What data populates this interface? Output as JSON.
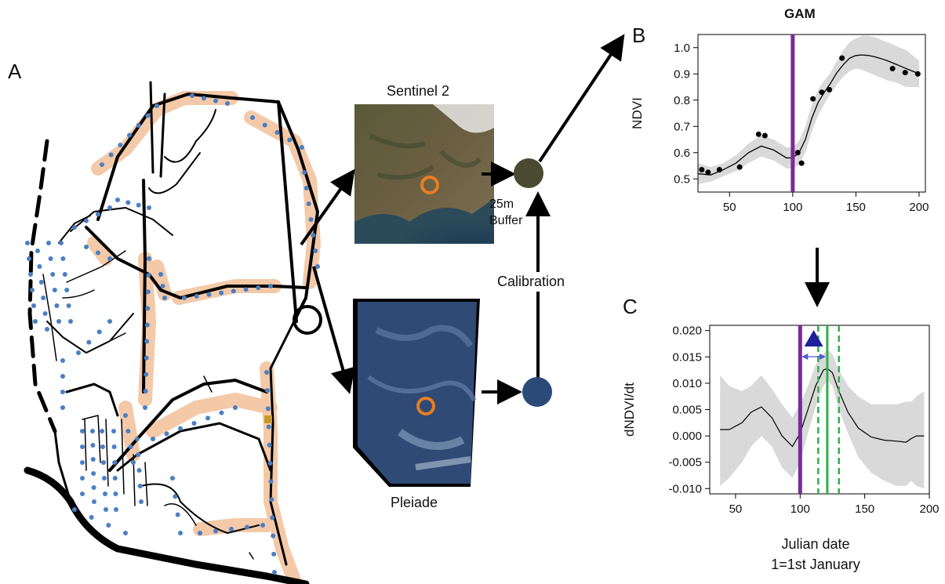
{
  "panels": {
    "a": "A",
    "b": "B",
    "c": "C"
  },
  "images": {
    "sentinel_title": "Sentinel 2",
    "pleiade_title": "Pleiade",
    "buffer_line1": "25m",
    "buffer_line2": "Buffer",
    "calibration": "Calibration"
  },
  "colors": {
    "road": "#000000",
    "survey_point": "#4a7fc4",
    "transect_buffer": "#f4c9a8",
    "vertical_marker": "#7a2a9a",
    "peak_marker": "#2eb04b",
    "ci_band": "#d9d9d9",
    "circle_marker": "#e67e22",
    "triangle": "#1f1f9e"
  },
  "chart_data": [
    {
      "type": "scatter",
      "title": "GAM",
      "xlabel": "",
      "ylabel": "NDVI",
      "xlim": [
        25,
        205
      ],
      "ylim": [
        0.45,
        1.05
      ],
      "xticks": [
        "50",
        "100",
        "150",
        "200"
      ],
      "yticks": [
        "0.5",
        "0.6",
        "0.7",
        "0.8",
        "0.9",
        "1.0"
      ],
      "vline": 100,
      "series": [
        {
          "points": [
            [
              28,
              0.535
            ],
            [
              33,
              0.525
            ],
            [
              42,
              0.535
            ],
            [
              58,
              0.545
            ],
            [
              73,
              0.67
            ],
            [
              78,
              0.665
            ],
            [
              104,
              0.6
            ],
            [
              107,
              0.56
            ],
            [
              116,
              0.805
            ],
            [
              123,
              0.83
            ],
            [
              129,
              0.84
            ],
            [
              139,
              0.96
            ],
            [
              179,
              0.92
            ],
            [
              189,
              0.905
            ],
            [
              199,
              0.9
            ]
          ],
          "fit_x": [
            25,
            35,
            45,
            55,
            65,
            75,
            85,
            95,
            100,
            105,
            110,
            115,
            120,
            125,
            130,
            135,
            140,
            145,
            150,
            155,
            160,
            165,
            170,
            175,
            180,
            185,
            190,
            195,
            200
          ],
          "fit_y": [
            0.52,
            0.515,
            0.535,
            0.56,
            0.6,
            0.625,
            0.61,
            0.58,
            0.58,
            0.6,
            0.65,
            0.73,
            0.79,
            0.83,
            0.865,
            0.905,
            0.935,
            0.96,
            0.97,
            0.972,
            0.97,
            0.965,
            0.958,
            0.95,
            0.94,
            0.93,
            0.92,
            0.91,
            0.9
          ],
          "fit_lower": [
            0.48,
            0.49,
            0.51,
            0.53,
            0.56,
            0.585,
            0.57,
            0.54,
            0.54,
            0.555,
            0.6,
            0.68,
            0.74,
            0.785,
            0.825,
            0.86,
            0.89,
            0.91,
            0.92,
            0.915,
            0.905,
            0.895,
            0.885,
            0.875,
            0.87,
            0.86,
            0.85,
            0.85,
            0.85
          ],
          "fit_upper": [
            0.56,
            0.545,
            0.56,
            0.59,
            0.635,
            0.665,
            0.65,
            0.62,
            0.62,
            0.645,
            0.7,
            0.78,
            0.84,
            0.875,
            0.905,
            0.95,
            0.99,
            1.02,
            1.035,
            1.045,
            1.045,
            1.04,
            1.03,
            1.02,
            1.01,
            1.0,
            0.99,
            0.97,
            0.95
          ]
        }
      ]
    },
    {
      "type": "line",
      "xlabel": "Julian date",
      "xlabel2": "1=1st January",
      "ylabel": "dNDVI/dt",
      "xlim": [
        30,
        200
      ],
      "ylim": [
        -0.011,
        0.021
      ],
      "xticks": [
        "50",
        "100",
        "150",
        "200"
      ],
      "yticks": [
        "0.020",
        "0.015",
        "0.010",
        "0.005",
        "0.000",
        "-0.005",
        "-0.010"
      ],
      "vline": 100,
      "peak": 121,
      "peak_lower": 114,
      "peak_upper": 130,
      "series": [
        {
          "x": [
            38,
            45,
            55,
            62,
            70,
            78,
            86,
            94,
            100,
            106,
            112,
            118,
            121,
            125,
            130,
            137,
            145,
            155,
            165,
            175,
            182,
            186,
            190,
            196
          ],
          "y": [
            0.0012,
            0.0012,
            0.0025,
            0.0045,
            0.0055,
            0.0035,
            0.0,
            -0.002,
            0.0005,
            0.005,
            0.0095,
            0.0125,
            0.0128,
            0.012,
            0.0085,
            0.0045,
            0.0015,
            -0.0002,
            -0.0008,
            -0.001,
            -0.0012,
            -0.0005,
            0.0,
            0.0
          ],
          "lower": [
            -0.0095,
            -0.008,
            -0.005,
            -0.002,
            0.0,
            -0.002,
            -0.006,
            -0.008,
            -0.005,
            0.0005,
            0.0055,
            0.0095,
            0.0105,
            0.0095,
            0.005,
            0.0005,
            -0.004,
            -0.007,
            -0.0085,
            -0.0095,
            -0.0095,
            -0.0085,
            -0.0095,
            -0.01
          ],
          "upper": [
            0.0115,
            0.0095,
            0.0085,
            0.0095,
            0.0115,
            0.009,
            0.006,
            0.0035,
            0.006,
            0.0095,
            0.0135,
            0.0155,
            0.0165,
            0.0155,
            0.0125,
            0.0095,
            0.0075,
            0.006,
            0.006,
            0.006,
            0.0065,
            0.0065,
            0.0075,
            0.0085
          ]
        }
      ]
    }
  ]
}
